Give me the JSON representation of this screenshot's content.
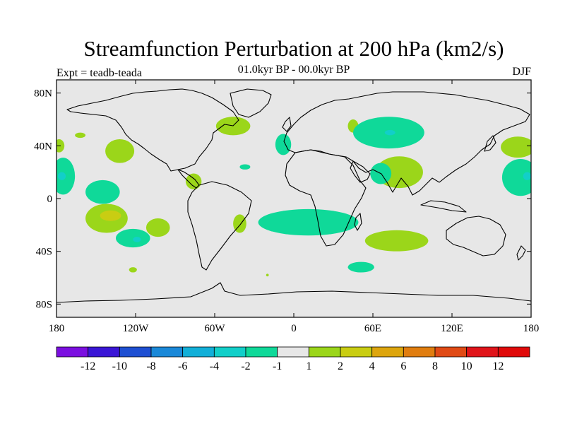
{
  "chart_data": {
    "type": "heatmap",
    "title": "Streamfunction Perturbation at 200 hPa (km2/s)",
    "left_label": "Expt = teadb-teada",
    "center_label": "01.0kyr BP - 00.0kyr BP",
    "right_label": "DJF",
    "xlabel": "",
    "ylabel": "",
    "xlim": [
      -180,
      180
    ],
    "ylim": [
      -90,
      90
    ],
    "x_ticks": [
      {
        "value": -180,
        "label": "180"
      },
      {
        "value": -120,
        "label": "120W"
      },
      {
        "value": -60,
        "label": "60W"
      },
      {
        "value": 0,
        "label": "0"
      },
      {
        "value": 60,
        "label": "60E"
      },
      {
        "value": 120,
        "label": "120E"
      },
      {
        "value": 180,
        "label": "180"
      }
    ],
    "y_ticks": [
      {
        "value": 80,
        "label": "80N"
      },
      {
        "value": 40,
        "label": "40N"
      },
      {
        "value": 0,
        "label": "0"
      },
      {
        "value": -40,
        "label": "40S"
      },
      {
        "value": -80,
        "label": "80S"
      }
    ],
    "colorbar": {
      "levels": [
        "-12",
        "-10",
        "-8",
        "-6",
        "-4",
        "-2",
        "-1",
        "1",
        "2",
        "4",
        "6",
        "8",
        "10",
        "12"
      ],
      "colors": [
        "#7b0fe0",
        "#3a16d6",
        "#1e4fd2",
        "#1a88d8",
        "#12afd8",
        "#12cfc9",
        "#0fd999",
        "#e7e7e7",
        "#9bd61a",
        "#c9cd12",
        "#dda50d",
        "#e07d0f",
        "#e04a15",
        "#e0141a",
        "#e00a0a"
      ],
      "dimmed_background": "#e7e7e7"
    },
    "regions": [
      {
        "name": "positive",
        "level": "1-2",
        "color": "#9bd61a",
        "lon": -132,
        "lat": 36,
        "rlon": 11,
        "rlat": 9
      },
      {
        "name": "positive",
        "level": "1-2",
        "color": "#9bd61a",
        "lon": -142,
        "lat": -15,
        "rlon": 16,
        "rlat": 11
      },
      {
        "name": "positive",
        "level": "2-4",
        "color": "#c9cd12",
        "lon": -139,
        "lat": -13,
        "rlon": 8,
        "rlat": 4
      },
      {
        "name": "positive",
        "level": "1-2",
        "color": "#9bd61a",
        "lon": -103,
        "lat": -22,
        "rlon": 9,
        "rlat": 7
      },
      {
        "name": "positive",
        "level": "1-2",
        "color": "#9bd61a",
        "lon": -76,
        "lat": 13,
        "rlon": 6,
        "rlat": 6
      },
      {
        "name": "positive",
        "level": "1-2",
        "color": "#9bd61a",
        "lon": -41,
        "lat": -19,
        "rlon": 5,
        "rlat": 7
      },
      {
        "name": "positive",
        "level": "1-2",
        "color": "#9bd61a",
        "lon": -162,
        "lat": 48,
        "rlon": 4,
        "rlat": 2
      },
      {
        "name": "positive",
        "level": "1-2",
        "color": "#9bd61a",
        "lon": -122,
        "lat": -54,
        "rlon": 3,
        "rlat": 2
      },
      {
        "name": "positive",
        "level": "1-2",
        "color": "#9bd61a",
        "lon": -46,
        "lat": 55,
        "rlon": 13,
        "rlat": 7
      },
      {
        "name": "positive",
        "level": "1-2",
        "color": "#9bd61a",
        "lon": -20,
        "lat": -58,
        "rlon": 1,
        "rlat": 1
      },
      {
        "name": "positive",
        "level": "1-2",
        "color": "#9bd61a",
        "lon": 45,
        "lat": 55,
        "rlon": 4,
        "rlat": 5
      },
      {
        "name": "positive",
        "level": "1-2",
        "color": "#9bd61a",
        "lon": 80,
        "lat": 20,
        "rlon": 18,
        "rlat": 12
      },
      {
        "name": "positive",
        "level": "1-2",
        "color": "#9bd61a",
        "lon": 78,
        "lat": -32,
        "rlon": 24,
        "rlat": 8
      },
      {
        "name": "positive",
        "level": "1-2",
        "color": "#9bd61a",
        "lon": 170,
        "lat": 39,
        "rlon": 13,
        "rlat": 8
      },
      {
        "name": "positive",
        "level": "1-2",
        "color": "#9bd61a",
        "lon": -178,
        "lat": 40,
        "rlon": 4,
        "rlat": 5
      },
      {
        "name": "negative",
        "level": "-2--1",
        "color": "#0fd999",
        "lon": -145,
        "lat": 5,
        "rlon": 13,
        "rlat": 9
      },
      {
        "name": "negative",
        "level": "-2--1",
        "color": "#0fd999",
        "lon": -122,
        "lat": -30,
        "rlon": 13,
        "rlat": 7
      },
      {
        "name": "negative",
        "level": "-2--1",
        "color": "#0fd999",
        "lon": -175,
        "lat": 17,
        "rlon": 9,
        "rlat": 14
      },
      {
        "name": "negative",
        "level": "-2--1",
        "color": "#0fd999",
        "lon": 172,
        "lat": 16,
        "rlon": 14,
        "rlat": 14
      },
      {
        "name": "negative",
        "level": "-2--1",
        "color": "#0fd999",
        "lon": -37,
        "lat": 24,
        "rlon": 4,
        "rlat": 2
      },
      {
        "name": "negative",
        "level": "-2--1",
        "color": "#0fd999",
        "lon": -8,
        "lat": 41,
        "rlon": 6,
        "rlat": 8
      },
      {
        "name": "negative",
        "level": "-2--1",
        "color": "#0fd999",
        "lon": 11,
        "lat": -18,
        "rlon": 38,
        "rlat": 10
      },
      {
        "name": "negative",
        "level": "-2--1",
        "color": "#0fd999",
        "lon": 72,
        "lat": 50,
        "rlon": 27,
        "rlat": 12
      },
      {
        "name": "negative",
        "level": "-2--1",
        "color": "#0fd999",
        "lon": 66,
        "lat": 19,
        "rlon": 8,
        "rlat": 8
      },
      {
        "name": "negative",
        "level": "-2--1",
        "color": "#0fd999",
        "lon": 51,
        "lat": -52,
        "rlon": 10,
        "rlat": 4
      },
      {
        "name": "negative",
        "level": "-4--2",
        "color": "#12cfc9",
        "lon": -176,
        "lat": 17,
        "rlon": 3,
        "rlat": 3
      },
      {
        "name": "negative",
        "level": "-4--2",
        "color": "#12cfc9",
        "lon": 177,
        "lat": 17,
        "rlon": 3,
        "rlat": 3
      },
      {
        "name": "negative",
        "level": "-4--2",
        "color": "#12cfc9",
        "lon": -119,
        "lat": -31,
        "rlon": 3,
        "rlat": 2
      },
      {
        "name": "negative",
        "level": "-4--2",
        "color": "#12cfc9",
        "lon": 73,
        "lat": 50,
        "rlon": 4,
        "rlat": 2
      }
    ]
  }
}
